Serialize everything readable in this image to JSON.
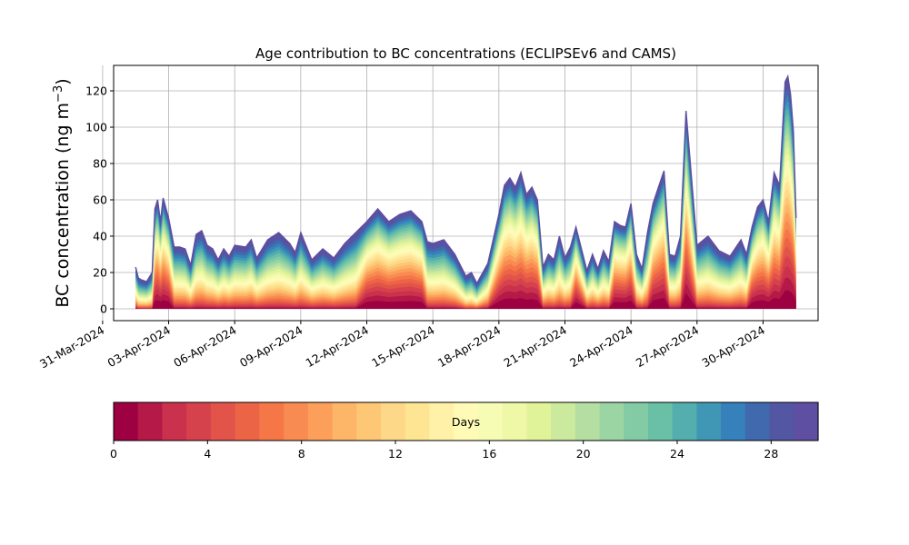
{
  "chart_data": {
    "type": "area",
    "title": "Age contribution to BC concentrations (ECLIPSEv6 and CAMS)",
    "xlabel": "",
    "ylabel": "BC concentration (ng m⁻³)",
    "ylabel_parts": [
      "BC concentration (ng m",
      "−3",
      ")"
    ],
    "xlim": [
      "2024-03-31T12:00",
      "2024-05-02T12:00"
    ],
    "ylim": [
      -6.5,
      134
    ],
    "grid": true,
    "x_ticks": [
      {
        "date": "2024-03-31",
        "label": "31-Mar-2024"
      },
      {
        "date": "2024-04-03",
        "label": "03-Apr-2024"
      },
      {
        "date": "2024-04-06",
        "label": "06-Apr-2024"
      },
      {
        "date": "2024-04-09",
        "label": "09-Apr-2024"
      },
      {
        "date": "2024-04-12",
        "label": "12-Apr-2024"
      },
      {
        "date": "2024-04-15",
        "label": "15-Apr-2024"
      },
      {
        "date": "2024-04-18",
        "label": "18-Apr-2024"
      },
      {
        "date": "2024-04-21",
        "label": "21-Apr-2024"
      },
      {
        "date": "2024-04-24",
        "label": "24-Apr-2024"
      },
      {
        "date": "2024-04-27",
        "label": "27-Apr-2024"
      },
      {
        "date": "2024-04-30",
        "label": "30-Apr-2024"
      }
    ],
    "y_ticks": [
      0,
      20,
      40,
      60,
      80,
      100,
      120
    ],
    "total": {
      "x": [
        "2024-04-01T12:00",
        "2024-04-01T15:00",
        "2024-04-01T18:00",
        "2024-04-02T00:00",
        "2024-04-02T06:00",
        "2024-04-02T09:00",
        "2024-04-02T12:00",
        "2024-04-02T15:00",
        "2024-04-02T18:00",
        "2024-04-03T00:00",
        "2024-04-03T06:00",
        "2024-04-03T12:00",
        "2024-04-03T18:00",
        "2024-04-04T00:00",
        "2024-04-04T06:00",
        "2024-04-04T12:00",
        "2024-04-04T18:00",
        "2024-04-05T00:00",
        "2024-04-05T06:00",
        "2024-04-05T12:00",
        "2024-04-05T18:00",
        "2024-04-06T00:00",
        "2024-04-06T12:00",
        "2024-04-06T18:00",
        "2024-04-07T00:00",
        "2024-04-07T12:00",
        "2024-04-08T00:00",
        "2024-04-08T12:00",
        "2024-04-08T18:00",
        "2024-04-09T00:00",
        "2024-04-09T12:00",
        "2024-04-10T00:00",
        "2024-04-10T12:00",
        "2024-04-11T00:00",
        "2024-04-11T12:00",
        "2024-04-12T00:00",
        "2024-04-12T12:00",
        "2024-04-13T00:00",
        "2024-04-13T12:00",
        "2024-04-14T00:00",
        "2024-04-14T06:00",
        "2024-04-14T12:00",
        "2024-04-14T18:00",
        "2024-04-15T00:00",
        "2024-04-15T12:00",
        "2024-04-16T00:00",
        "2024-04-16T12:00",
        "2024-04-16T18:00",
        "2024-04-17T00:00",
        "2024-04-17T12:00",
        "2024-04-18T00:00",
        "2024-04-18T06:00",
        "2024-04-18T12:00",
        "2024-04-18T18:00",
        "2024-04-19T00:00",
        "2024-04-19T06:00",
        "2024-04-19T12:00",
        "2024-04-19T18:00",
        "2024-04-20T00:00",
        "2024-04-20T06:00",
        "2024-04-20T12:00",
        "2024-04-20T18:00",
        "2024-04-21T00:00",
        "2024-04-21T06:00",
        "2024-04-21T12:00",
        "2024-04-22T00:00",
        "2024-04-22T06:00",
        "2024-04-22T12:00",
        "2024-04-22T18:00",
        "2024-04-23T00:00",
        "2024-04-23T06:00",
        "2024-04-23T12:00",
        "2024-04-23T18:00",
        "2024-04-24T00:00",
        "2024-04-24T06:00",
        "2024-04-24T12:00",
        "2024-04-24T18:00",
        "2024-04-25T00:00",
        "2024-04-25T06:00",
        "2024-04-25T12:00",
        "2024-04-25T18:00",
        "2024-04-26T00:00",
        "2024-04-26T06:00",
        "2024-04-26T12:00",
        "2024-04-27T00:00",
        "2024-04-27T12:00",
        "2024-04-28T00:00",
        "2024-04-28T12:00",
        "2024-04-29T00:00",
        "2024-04-29T06:00",
        "2024-04-29T12:00",
        "2024-04-29T18:00",
        "2024-04-30T00:00",
        "2024-04-30T06:00",
        "2024-04-30T12:00",
        "2024-04-30T18:00",
        "2024-05-01T00:00",
        "2024-05-01T03:00",
        "2024-05-01T06:00",
        "2024-05-01T09:00",
        "2024-05-01T12:00"
      ],
      "y": [
        23,
        17,
        16,
        15,
        20,
        55,
        60,
        48,
        61,
        50,
        34,
        34,
        33,
        24,
        41,
        43,
        35,
        33,
        27,
        33,
        29,
        35,
        34,
        38,
        28,
        38,
        42,
        36,
        31,
        42,
        27,
        33,
        28,
        36,
        42,
        48,
        55,
        48,
        52,
        54,
        51,
        48,
        37,
        36,
        38,
        30,
        18,
        20,
        14,
        25,
        52,
        68,
        72,
        67,
        75,
        63,
        67,
        60,
        23,
        30,
        27,
        40,
        28,
        34,
        45,
        21,
        30,
        22,
        32,
        26,
        48,
        46,
        45,
        58,
        30,
        22,
        42,
        58,
        67,
        76,
        30,
        29,
        40,
        109,
        35,
        40,
        32,
        29,
        38,
        30,
        45,
        56,
        60,
        48,
        75,
        68,
        125,
        128,
        118,
        98,
        50
      ]
    },
    "colorbar": {
      "label": "Days",
      "ticks": [
        0,
        4,
        8,
        12,
        16,
        20,
        24,
        28
      ],
      "range": [
        0,
        30
      ],
      "colors": [
        "#9e0142",
        "#b41947",
        "#c9314c",
        "#d6424c",
        "#e2534a",
        "#ec6446",
        "#f57748",
        "#f88b52",
        "#fb9f5a",
        "#fdb567",
        "#fdc776",
        "#fed889",
        "#fee593",
        "#fff1a8",
        "#fffbb7",
        "#f7fcb4",
        "#eef8a6",
        "#e1f399",
        "#ccea9d",
        "#b5dfa2",
        "#9cd5a4",
        "#82cba5",
        "#69c0a5",
        "#54aead",
        "#4097b5",
        "#3681bb",
        "#4169ad",
        "#5256a3",
        "#5e4fa2"
      ]
    }
  }
}
